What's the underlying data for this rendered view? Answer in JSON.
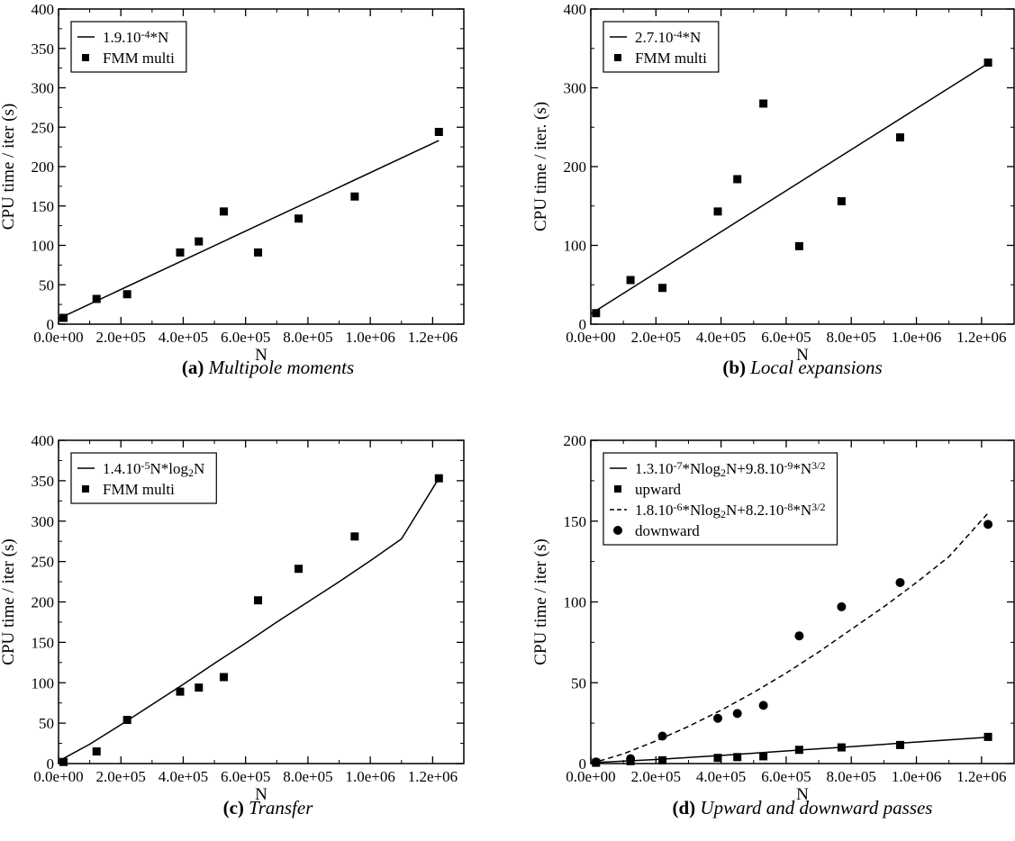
{
  "chart_data": [
    {
      "type": "scatter",
      "caption_label": "(a)",
      "caption_title": "Multipole moments",
      "xlabel": "N",
      "ylabel": "CPU time / iter (s)",
      "xlim": [
        0,
        1300000
      ],
      "ylim": [
        0,
        400
      ],
      "xticks": [
        "0.0e+00",
        "2.0e+05",
        "4.0e+05",
        "6.0e+05",
        "8.0e+05",
        "1.0e+06",
        "1.2e+06"
      ],
      "xtick_values": [
        0,
        200000,
        400000,
        600000,
        800000,
        1000000,
        1200000
      ],
      "yticks": [
        "0",
        "50",
        "100",
        "150",
        "200",
        "250",
        "300",
        "350",
        "400"
      ],
      "ytick_values": [
        0,
        50,
        100,
        150,
        200,
        250,
        300,
        350,
        400
      ],
      "legend_position": "top-left",
      "series": [
        {
          "name": "1.9.10-4*N",
          "name_parts": [
            [
              "1.9.10",
              ""
            ],
            [
              "-4",
              "sup"
            ],
            [
              "*N",
              ""
            ]
          ],
          "kind": "line",
          "style": "solid",
          "x": [
            0,
            1220000
          ],
          "y": [
            7,
            233
          ]
        },
        {
          "name": "FMM multi",
          "kind": "markers",
          "marker": "square",
          "x": [
            16000,
            122000,
            220000,
            390000,
            450000,
            530000,
            640000,
            770000,
            950000,
            1220000
          ],
          "y": [
            8,
            32,
            38,
            91,
            105,
            143,
            91,
            134,
            162,
            244
          ]
        }
      ]
    },
    {
      "type": "scatter",
      "caption_label": "(b)",
      "caption_title": "Local expansions",
      "xlabel": "N",
      "ylabel": "CPU time / iter. (s)",
      "xlim": [
        0,
        1300000
      ],
      "ylim": [
        0,
        400
      ],
      "xticks": [
        "0.0e+00",
        "2.0e+05",
        "4.0e+05",
        "6.0e+05",
        "8.0e+05",
        "1.0e+06",
        "1.2e+06"
      ],
      "xtick_values": [
        0,
        200000,
        400000,
        600000,
        800000,
        1000000,
        1200000
      ],
      "yticks": [
        "0",
        "100",
        "200",
        "300",
        "400"
      ],
      "ytick_values": [
        0,
        100,
        200,
        300,
        400
      ],
      "legend_position": "top-left",
      "series": [
        {
          "name": "2.7.10-4*N",
          "name_parts": [
            [
              "2.7.10",
              ""
            ],
            [
              "-4",
              "sup"
            ],
            [
              "*N",
              ""
            ]
          ],
          "kind": "line",
          "style": "solid",
          "x": [
            0,
            1220000
          ],
          "y": [
            13,
            331
          ]
        },
        {
          "name": "FMM multi",
          "kind": "markers",
          "marker": "square",
          "x": [
            16000,
            122000,
            220000,
            390000,
            450000,
            530000,
            640000,
            770000,
            950000,
            1220000
          ],
          "y": [
            14,
            56,
            46,
            143,
            184,
            280,
            99,
            156,
            237,
            332
          ]
        }
      ]
    },
    {
      "type": "scatter",
      "caption_label": "(c)",
      "caption_title": "Transfer",
      "xlabel": "N",
      "ylabel": "CPU time / iter (s)",
      "xlim": [
        0,
        1300000
      ],
      "ylim": [
        0,
        400
      ],
      "xticks": [
        "0.0e+00",
        "2.0e+05",
        "4.0e+05",
        "6.0e+05",
        "8.0e+05",
        "1.0e+06",
        "1.2e+06"
      ],
      "xtick_values": [
        0,
        200000,
        400000,
        600000,
        800000,
        1000000,
        1200000
      ],
      "yticks": [
        "0",
        "50",
        "100",
        "150",
        "200",
        "250",
        "300",
        "350",
        "400"
      ],
      "ytick_values": [
        0,
        50,
        100,
        150,
        200,
        250,
        300,
        350,
        400
      ],
      "legend_position": "top-left",
      "series": [
        {
          "name": "1.4.10-5N*log2N",
          "name_parts": [
            [
              "1.4.10",
              ""
            ],
            [
              "-5",
              "sup"
            ],
            [
              "N*log",
              ""
            ],
            [
              "2",
              "sub"
            ],
            [
              "N",
              ""
            ]
          ],
          "kind": "line",
          "style": "solid",
          "x": [
            0,
            100000,
            200000,
            300000,
            400000,
            500000,
            600000,
            700000,
            800000,
            900000,
            1000000,
            1100000,
            1220000
          ],
          "y": [
            3,
            24,
            48,
            73,
            98,
            124,
            149,
            175,
            200,
            225,
            251,
            278,
            353
          ]
        },
        {
          "name": "FMM multi",
          "kind": "markers",
          "marker": "square",
          "x": [
            16000,
            122000,
            220000,
            390000,
            450000,
            530000,
            640000,
            770000,
            950000,
            1220000
          ],
          "y": [
            2,
            15,
            54,
            89,
            94,
            107,
            202,
            241,
            281,
            353
          ]
        }
      ]
    },
    {
      "type": "scatter",
      "caption_label": "(d)",
      "caption_title": "Upward and downward passes",
      "xlabel": "N",
      "ylabel": "CPU time / iter (s)",
      "xlim": [
        0,
        1300000
      ],
      "ylim": [
        0,
        200
      ],
      "xticks": [
        "0.0e+00",
        "2.0e+05",
        "4.0e+05",
        "6.0e+05",
        "8.0e+05",
        "1.0e+06",
        "1.2e+06"
      ],
      "xtick_values": [
        0,
        200000,
        400000,
        600000,
        800000,
        1000000,
        1200000
      ],
      "yticks": [
        "0",
        "50",
        "100",
        "150",
        "200"
      ],
      "ytick_values": [
        0,
        50,
        100,
        150,
        200
      ],
      "legend_position": "top-left",
      "series": [
        {
          "name": "1.3.10-7*Nlog2N+9.8.10-9*N3/2",
          "name_parts": [
            [
              "1.3.10",
              ""
            ],
            [
              "-7",
              "sup"
            ],
            [
              "*Nlog",
              ""
            ],
            [
              "2",
              "sub"
            ],
            [
              "N+9.8.10",
              ""
            ],
            [
              "-9",
              "sup"
            ],
            [
              "*N",
              ""
            ],
            [
              "3/2",
              "sup"
            ]
          ],
          "kind": "line",
          "style": "solid",
          "x": [
            0,
            200000,
            400000,
            600000,
            800000,
            1000000,
            1220000
          ],
          "y": [
            0.5,
            2.5,
            5,
            7.8,
            10.5,
            13.3,
            16.3
          ]
        },
        {
          "name": "upward",
          "kind": "markers",
          "marker": "square",
          "x": [
            16000,
            122000,
            220000,
            390000,
            450000,
            530000,
            640000,
            770000,
            950000,
            1220000
          ],
          "y": [
            0.5,
            1.5,
            2,
            3.5,
            4,
            4.5,
            8.5,
            10,
            11.5,
            16.5
          ]
        },
        {
          "name": "1.8.10-6*Nlog2N+8.2.10-8*N3/2",
          "name_parts": [
            [
              "1.8.10",
              ""
            ],
            [
              "-6",
              "sup"
            ],
            [
              "*Nlog",
              ""
            ],
            [
              "2",
              "sub"
            ],
            [
              "N+8.2.10",
              ""
            ],
            [
              "-8",
              "sup"
            ],
            [
              "*N",
              ""
            ],
            [
              "3/2",
              "sup"
            ]
          ],
          "kind": "line",
          "style": "dashed",
          "x": [
            0,
            100000,
            200000,
            300000,
            400000,
            500000,
            600000,
            700000,
            800000,
            900000,
            1000000,
            1100000,
            1220000
          ],
          "y": [
            0,
            6,
            14,
            23,
            33,
            44,
            56,
            69,
            83,
            97,
            112,
            128,
            155
          ]
        },
        {
          "name": "downward",
          "kind": "markers",
          "marker": "circle",
          "x": [
            16000,
            122000,
            220000,
            390000,
            450000,
            530000,
            640000,
            770000,
            950000,
            1220000
          ],
          "y": [
            1,
            3,
            17,
            28,
            31,
            36,
            79,
            97,
            112,
            148
          ]
        }
      ]
    }
  ]
}
